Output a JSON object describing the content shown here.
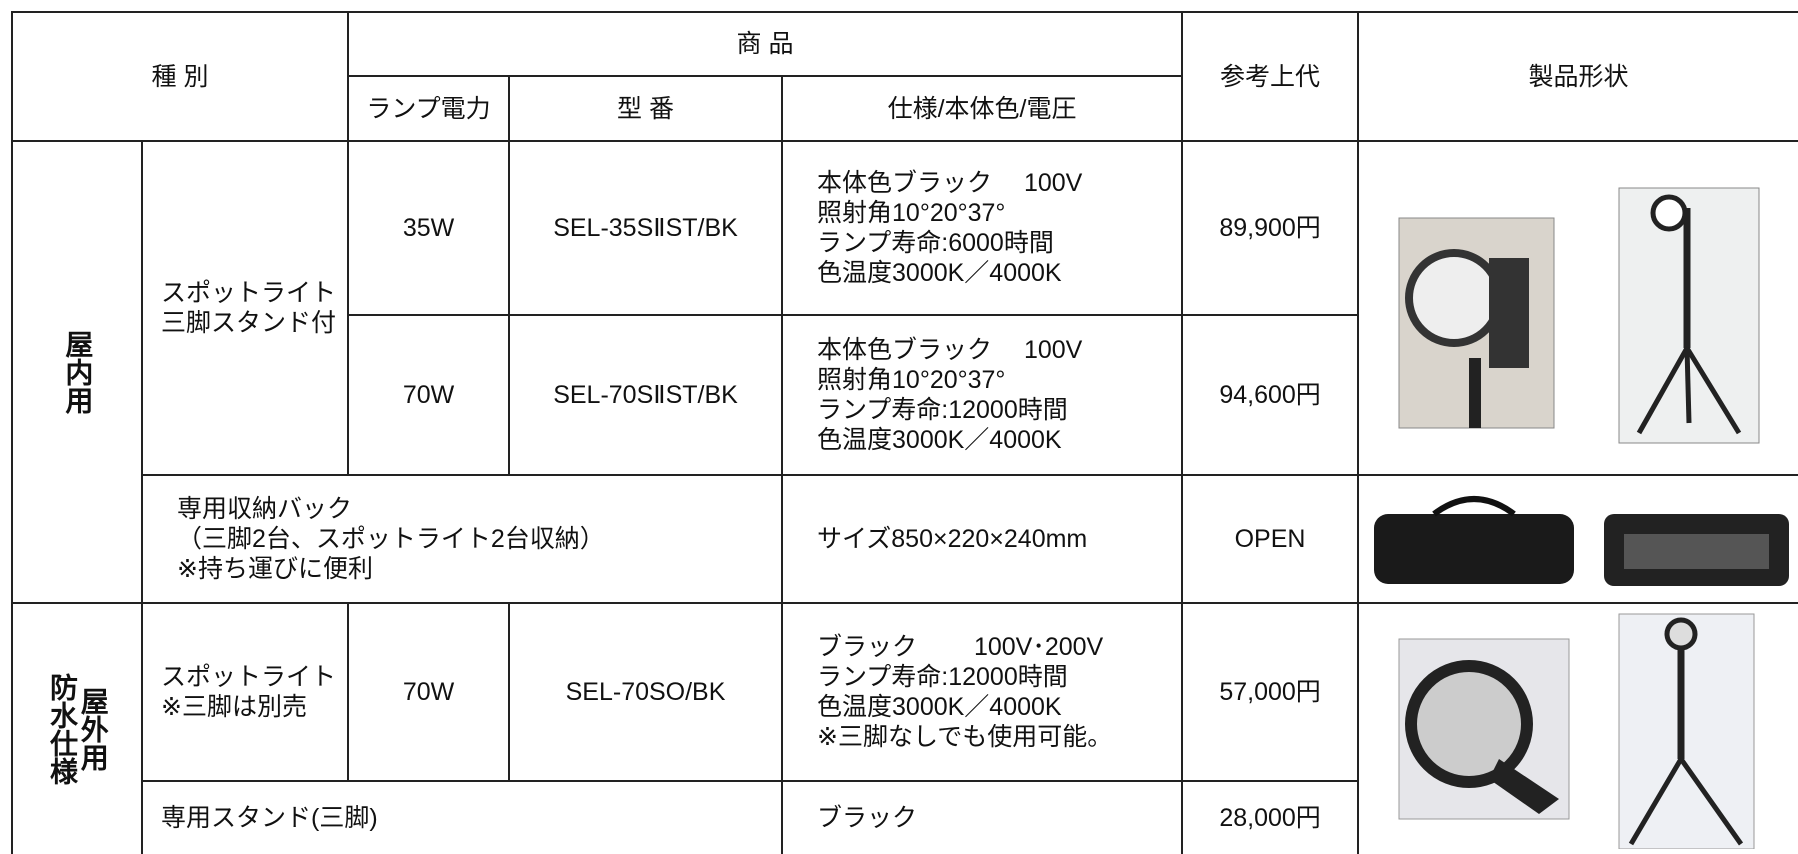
{
  "table": {
    "header": {
      "category": "種 別",
      "product": "商 品",
      "wattage": "ランプ電力",
      "model": "型 番",
      "spec": "仕様/本体色/電圧",
      "price": "参考上代",
      "shape": "製品形状"
    },
    "indoor": {
      "label": "屋内用",
      "spotlight": {
        "name": [
          "スポットライト",
          "三脚スタンド付"
        ],
        "variants": [
          {
            "wattage": "35W",
            "model": "SEL-35SⅡST/BK",
            "spec": [
              "本体色ブラック　 100V",
              "照射角10°20°37°",
              "ランプ寿命:6000時間",
              "色温度3000K／4000K"
            ],
            "price": "89,900円"
          },
          {
            "wattage": "70W",
            "model": "SEL-70SⅡST/BK",
            "spec": [
              "本体色ブラック　 100V",
              "照射角10°20°37°",
              "ランプ寿命:12000時間",
              "色温度3000K／4000K"
            ],
            "price": "94,600円"
          }
        ]
      },
      "bag": {
        "name": [
          "専用収納バック",
          "（三脚2台、スポットライト2台収納）",
          "※持ち運びに便利"
        ],
        "spec": "サイズ850×220×240mm",
        "price": "OPEN"
      }
    },
    "outdoor": {
      "label": [
        "屋外用",
        "防水仕様"
      ],
      "spotlight": {
        "name": [
          "スポットライト",
          "※三脚は別売"
        ],
        "wattage": "70W",
        "model": "SEL-70SO/BK",
        "spec": [
          "ブラック　　 100V･200V",
          "ランプ寿命:12000時間",
          "色温度3000K／4000K",
          "※三脚なしでも使用可能。"
        ],
        "price": "57,000円"
      },
      "stand": {
        "name": "専用スタンド(三脚)",
        "spec": "ブラック",
        "price": "28,000円"
      }
    }
  }
}
